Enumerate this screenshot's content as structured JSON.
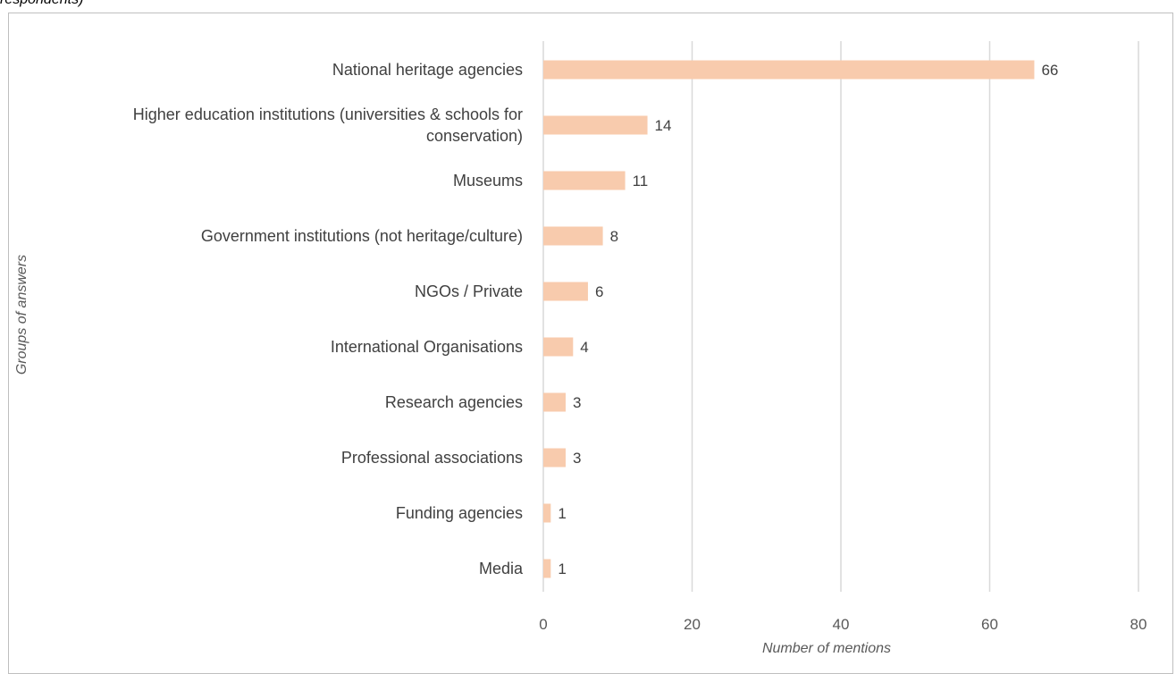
{
  "caption": "respondents)",
  "chart_data": {
    "type": "bar",
    "orientation": "horizontal",
    "categories": [
      "National heritage agencies",
      "Higher education institutions (universities & schools for conservation)",
      "Museums",
      "Government institutions (not heritage/culture)",
      "NGOs / Private",
      "International Organisations",
      "Research agencies",
      "Professional associations",
      "Funding agencies",
      "Media"
    ],
    "category_lines": [
      [
        "National heritage agencies"
      ],
      [
        "Higher education institutions (universities & schools for",
        "conservation)"
      ],
      [
        "Museums"
      ],
      [
        "Government institutions (not heritage/culture)"
      ],
      [
        "NGOs / Private"
      ],
      [
        "International Organisations"
      ],
      [
        "Research agencies"
      ],
      [
        "Professional associations"
      ],
      [
        "Funding agencies"
      ],
      [
        "Media"
      ]
    ],
    "values": [
      66,
      14,
      11,
      8,
      6,
      4,
      3,
      3,
      1,
      1
    ],
    "xlabel": "Number of mentions",
    "ylabel": "Groups of answers",
    "xlim": [
      0,
      80
    ],
    "xticks": [
      0,
      20,
      40,
      60,
      80
    ],
    "grid": true,
    "legend": "none",
    "bar_color": "#f8cbad",
    "grid_color": "#d9d9d9"
  }
}
